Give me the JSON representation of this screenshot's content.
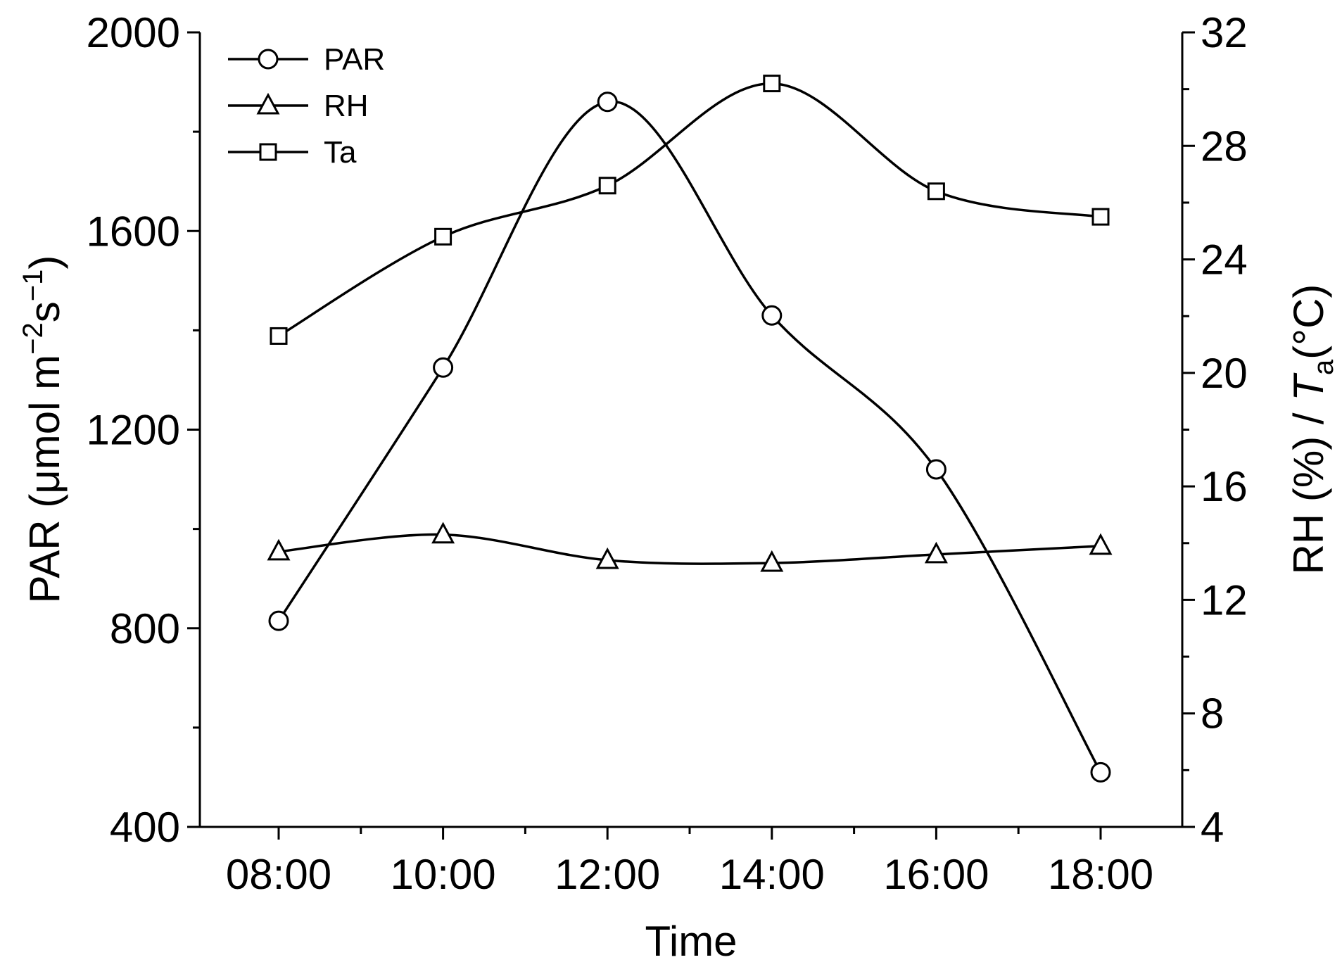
{
  "chart_data": {
    "type": "line",
    "x": [
      "08:00",
      "10:00",
      "12:00",
      "14:00",
      "16:00",
      "18:00"
    ],
    "xlabel": "Time",
    "ylabel_left": {
      "prefix": "PAR (μmol m",
      "exp1": "−2",
      "mid": "s",
      "exp2": "−1",
      "suffix": ")"
    },
    "ylabel_right": {
      "prefix": "RH (%) / ",
      "italic": "T",
      "subscript": "a",
      "suffix": "(°C)"
    },
    "ylim_left": [
      400,
      2000
    ],
    "yticks_left": [
      400,
      800,
      1200,
      1600,
      2000
    ],
    "ylim_right": [
      4,
      32
    ],
    "yticks_right": [
      4,
      8,
      12,
      16,
      20,
      24,
      28,
      32
    ],
    "legend_position": "top-left",
    "series": [
      {
        "name": "PAR",
        "axis": "left",
        "marker": "circle",
        "values": [
          815,
          1325,
          1860,
          1430,
          1120,
          510
        ]
      },
      {
        "name": "RH",
        "axis": "right",
        "marker": "triangle",
        "values": [
          13.7,
          14.3,
          13.4,
          13.3,
          13.6,
          13.9
        ]
      },
      {
        "name": "Ta",
        "axis": "right",
        "marker": "square",
        "values": [
          21.3,
          24.8,
          26.6,
          30.2,
          26.4,
          25.5
        ]
      }
    ]
  }
}
